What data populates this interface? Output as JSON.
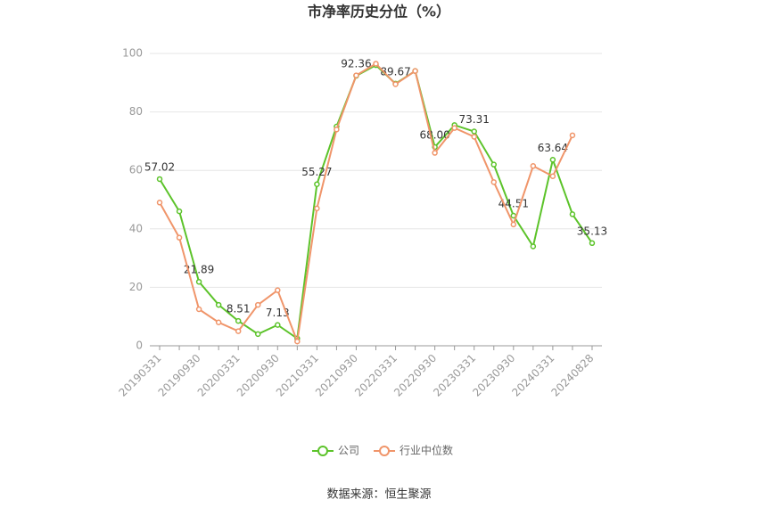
{
  "chart_data": {
    "type": "line",
    "title": "市净率历史分位（%）",
    "source": "数据来源：恒生聚源",
    "categories": [
      "20190331",
      null,
      "20190930",
      null,
      "20200331",
      null,
      "20200930",
      null,
      "20210331",
      null,
      "20210930",
      null,
      "20220331",
      null,
      "20220930",
      null,
      "20230331",
      null,
      "20230930",
      null,
      "20240331",
      null,
      "20240828"
    ],
    "series": [
      {
        "name": "公司",
        "color": "#5cc32a",
        "values": [
          57.02,
          46,
          21.89,
          14,
          8.51,
          4,
          7.13,
          2.5,
          55.27,
          75,
          92.36,
          96,
          89.67,
          94,
          68.0,
          75.5,
          73.31,
          62,
          44.51,
          34,
          63.64,
          45,
          35.13
        ],
        "value_labels": [
          "57.02",
          null,
          "21.89",
          null,
          "8.51",
          null,
          "7.13",
          null,
          "55.27",
          null,
          "92.36",
          null,
          "89.67",
          null,
          "68.00",
          null,
          "73.31",
          null,
          "44.51",
          null,
          "63.64",
          null,
          "35.13"
        ]
      },
      {
        "name": "行业中位数",
        "color": "#f0956a",
        "values": [
          49,
          37,
          12.5,
          8,
          5,
          14,
          19,
          1.5,
          47,
          74,
          92.5,
          96.5,
          89.5,
          94,
          66,
          74.5,
          71.5,
          56,
          41.5,
          61.5,
          58,
          72,
          null
        ]
      }
    ],
    "ylim": [
      0,
      100
    ],
    "yticks": [
      0,
      20,
      40,
      60,
      80,
      100
    ],
    "grid": true,
    "legend": "bottom"
  }
}
